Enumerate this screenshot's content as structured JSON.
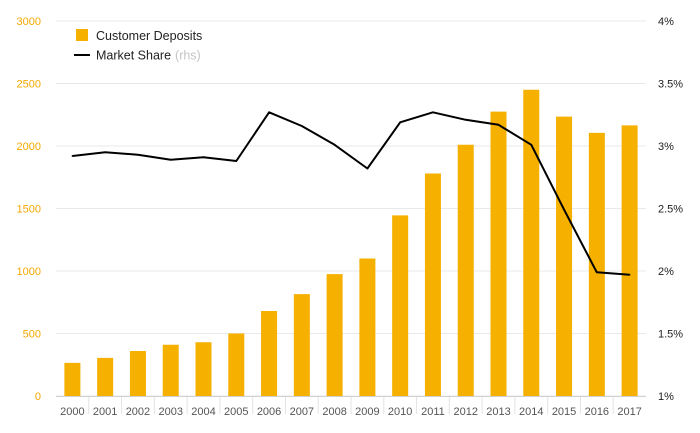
{
  "chart_data": {
    "type": "bar+line",
    "categories": [
      "2000",
      "2001",
      "2002",
      "2003",
      "2004",
      "2005",
      "2006",
      "2007",
      "2008",
      "2009",
      "2010",
      "2011",
      "2012",
      "2013",
      "2014",
      "2015",
      "2016",
      "2017"
    ],
    "series": [
      {
        "name": "Customer Deposits",
        "type": "bar",
        "axis": "left",
        "color": "#f5b000",
        "values": [
          265,
          305,
          360,
          410,
          430,
          500,
          680,
          815,
          975,
          1100,
          1445,
          1780,
          2010,
          2275,
          2450,
          2235,
          2105,
          2165
        ]
      },
      {
        "name": "Market Share",
        "type": "line",
        "axis": "right",
        "color": "#000000",
        "values": [
          2.92,
          2.95,
          2.93,
          2.89,
          2.91,
          2.88,
          3.27,
          3.16,
          3.01,
          2.82,
          3.19,
          3.27,
          3.21,
          3.17,
          3.01,
          2.49,
          1.99,
          1.97
        ]
      }
    ],
    "left_axis": {
      "ylim": [
        0,
        3000
      ],
      "ticks": [
        "0",
        "500",
        "1000",
        "1500",
        "2000",
        "2500",
        "3000"
      ],
      "color": "#f5a800"
    },
    "right_axis": {
      "ylim": [
        1,
        4
      ],
      "ticks": [
        "1%",
        "1.5%",
        "2%",
        "2.5%",
        "3%",
        "3.5%",
        "4%"
      ]
    },
    "legend": {
      "position": "top-left",
      "items": [
        {
          "label": "Customer Deposits",
          "note": ""
        },
        {
          "label": "Market Share",
          "note": "(rhs)"
        }
      ]
    },
    "grid": true
  }
}
